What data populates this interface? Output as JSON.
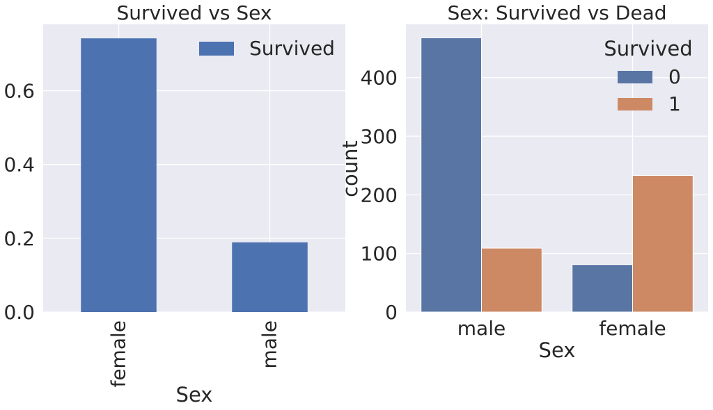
{
  "colors": {
    "panel_bg": "#eaeaf2",
    "bar_left": "#4c72b0",
    "series0": "#5975a4",
    "series1": "#cc8963"
  },
  "chart_data": [
    {
      "type": "bar",
      "title": "Survived vs Sex",
      "xlabel": "Sex",
      "ylabel": "",
      "categories": [
        "female",
        "male"
      ],
      "series": [
        {
          "name": "Survived",
          "values": [
            0.742,
            0.189
          ]
        }
      ],
      "ylim": [
        0,
        0.78
      ],
      "yticks": [
        "0.0",
        "0.2",
        "0.4",
        "0.6"
      ],
      "ytick_values": [
        0.0,
        0.2,
        0.4,
        0.6
      ],
      "grid": true,
      "legend": "top-right",
      "legend_entries": [
        "Survived"
      ]
    },
    {
      "type": "bar",
      "title": "Sex: Survived vs Dead",
      "xlabel": "Sex",
      "ylabel": "count",
      "categories": [
        "male",
        "female"
      ],
      "series": [
        {
          "name": "0",
          "values": [
            468,
            81
          ]
        },
        {
          "name": "1",
          "values": [
            109,
            233
          ]
        }
      ],
      "ylim": [
        0,
        491
      ],
      "yticks": [
        "0",
        "100",
        "200",
        "300",
        "400"
      ],
      "ytick_values": [
        0,
        100,
        200,
        300,
        400
      ],
      "grid": true,
      "legend": "top-right",
      "legend_title": "Survived",
      "legend_entries": [
        "0",
        "1"
      ]
    }
  ]
}
